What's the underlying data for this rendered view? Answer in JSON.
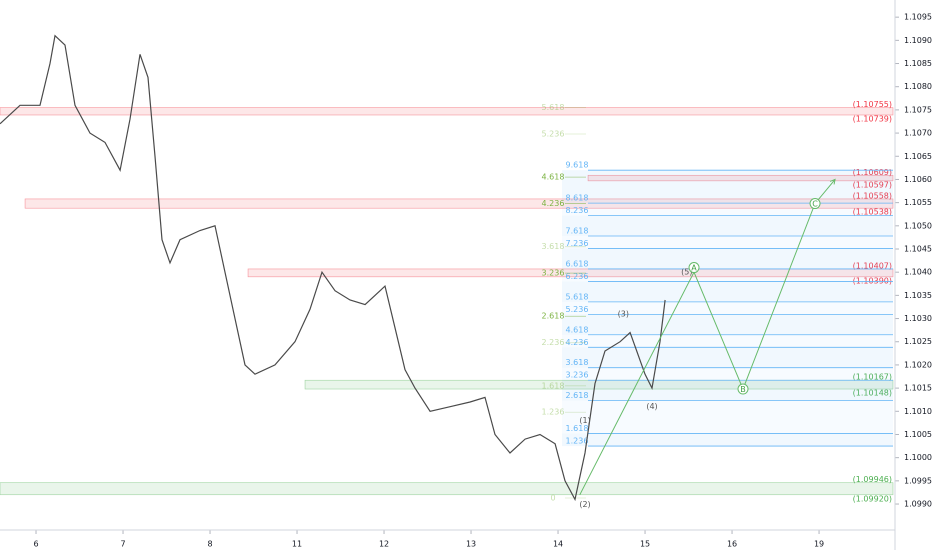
{
  "chart_data": {
    "type": "line",
    "xlim": [
      5.86,
      108.5
    ],
    "ylim": [
      1.09844,
      1.10987
    ],
    "xticks": [
      {
        "value": 10,
        "label": "6"
      },
      {
        "value": 20,
        "label": "7"
      },
      {
        "value": 30,
        "label": "8"
      },
      {
        "value": 40,
        "label": "11"
      },
      {
        "value": 50,
        "label": "12"
      },
      {
        "value": 60,
        "label": "13"
      },
      {
        "value": 70,
        "label": "14"
      },
      {
        "value": 80,
        "label": "15"
      },
      {
        "value": 90,
        "label": "16"
      },
      {
        "value": 100,
        "label": "19"
      }
    ],
    "yticks": [
      {
        "value": 1.1095,
        "label": "1.10950"
      },
      {
        "value": 1.109,
        "label": "1.10900"
      },
      {
        "value": 1.1085,
        "label": "1.10850"
      },
      {
        "value": 1.108,
        "label": "1.10800"
      },
      {
        "value": 1.1075,
        "label": "1.10750"
      },
      {
        "value": 1.107,
        "label": "1.10700"
      },
      {
        "value": 1.1065,
        "label": "1.10650"
      },
      {
        "value": 1.106,
        "label": "1.10600"
      },
      {
        "value": 1.1055,
        "label": "1.10550"
      },
      {
        "value": 1.105,
        "label": "1.10500"
      },
      {
        "value": 1.1045,
        "label": "1.10450"
      },
      {
        "value": 1.104,
        "label": "1.10400"
      },
      {
        "value": 1.1035,
        "label": "1.10350"
      },
      {
        "value": 1.103,
        "label": "1.10300"
      },
      {
        "value": 1.1025,
        "label": "1.10250"
      },
      {
        "value": 1.102,
        "label": "1.10200"
      },
      {
        "value": 1.1015,
        "label": "1.10150"
      },
      {
        "value": 1.101,
        "label": "1.10100"
      },
      {
        "value": 1.1005,
        "label": "1.10050"
      },
      {
        "value": 1.1,
        "label": "1.10000"
      },
      {
        "value": 1.0995,
        "label": "1.09950"
      },
      {
        "value": 1.099,
        "label": "1.09900"
      }
    ],
    "series": [
      {
        "color": "#4a4a4a",
        "x": [
          5.86,
          8.16,
          10.46,
          11.61,
          12.18,
          13.33,
          14.48,
          16.21,
          17.93,
          19.66,
          20.8,
          21.95,
          22.87,
          23.68,
          24.48,
          25.4,
          26.55,
          28.85,
          30.57,
          31.72,
          32.87,
          34.02,
          35.17,
          37.47,
          39.77,
          41.49,
          42.87,
          44.37,
          46.09,
          47.82,
          50.11,
          51.26,
          52.41,
          53.56,
          55.29,
          57.59,
          59.89,
          61.61,
          62.76,
          64.48,
          66.21,
          67.93,
          69.66,
          70.8,
          71.95,
          73.1,
          74.25,
          75.4,
          77.13,
          78.28,
          80.0,
          80.8,
          81.72,
          82.3
        ],
        "values": [
          1.1072,
          1.1076,
          1.1076,
          1.1085,
          1.1091,
          1.1089,
          1.1076,
          1.107,
          1.1068,
          1.1062,
          1.1073,
          1.1087,
          1.1082,
          1.1065,
          1.1047,
          1.1042,
          1.1047,
          1.1049,
          1.105,
          1.104,
          1.103,
          1.102,
          1.1018,
          1.102,
          1.1025,
          1.1032,
          1.104,
          1.1036,
          1.1034,
          1.1033,
          1.1037,
          1.1028,
          1.1019,
          1.1015,
          1.101,
          1.1011,
          1.1012,
          1.1013,
          1.1005,
          1.1001,
          1.1004,
          1.1005,
          1.1003,
          1.0995,
          1.0991,
          1.1001,
          1.1016,
          1.1023,
          1.1025,
          1.1027,
          1.1018,
          1.1015,
          1.1025,
          1.1034
        ]
      }
    ],
    "zones": [
      {
        "from": 5.86,
        "top": 1.10755,
        "bottom": 1.10739,
        "color": "#f23645",
        "top_label": "(1.10755)",
        "bottom_label": "(1.10739)"
      },
      {
        "from": 73.45,
        "top": 1.10609,
        "bottom": 1.10597,
        "color": "#f23645",
        "top_label": "(1.10609)",
        "bottom_label": "(1.10597)"
      },
      {
        "from": 8.74,
        "top": 1.10558,
        "bottom": 1.10538,
        "color": "#f23645",
        "top_label": "(1.10558)",
        "bottom_label": "(1.10538)"
      },
      {
        "from": 34.37,
        "top": 1.10407,
        "bottom": 1.1039,
        "color": "#f23645",
        "top_label": "(1.10407)",
        "bottom_label": "(1.10390)"
      },
      {
        "from": 40.92,
        "top": 1.10167,
        "bottom": 1.10148,
        "color": "#4caf50",
        "top_label": "(1.10167)",
        "bottom_label": "(1.10148)"
      },
      {
        "from": 5.86,
        "top": 1.09946,
        "bottom": 1.0992,
        "color": "#4caf50",
        "top_label": "(1.09946)",
        "bottom_label": "(1.09920)"
      }
    ],
    "fib_left": {
      "color": "#7cb342",
      "levels": [
        {
          "ratio": 5.618,
          "price": 1.10755
        },
        {
          "ratio": 5.236,
          "price": 1.10698
        },
        {
          "ratio": 4.618,
          "price": 1.10605
        },
        {
          "ratio": 4.236,
          "price": 1.10548
        },
        {
          "ratio": 3.618,
          "price": 1.10455
        },
        {
          "ratio": 3.236,
          "price": 1.10398
        },
        {
          "ratio": 2.618,
          "price": 1.10305
        },
        {
          "ratio": 2.236,
          "price": 1.10248
        },
        {
          "ratio": 1.618,
          "price": 1.10155
        },
        {
          "ratio": 1.236,
          "price": 1.10098
        },
        {
          "ratio": 0,
          "price": 1.09913
        }
      ]
    },
    "fib_right": {
      "color": "#64b5f6",
      "levels": [
        {
          "ratio": 9.618,
          "price": 1.1062
        },
        {
          "ratio": 8.618,
          "price": 1.10549
        },
        {
          "ratio": 8.236,
          "price": 1.10522
        },
        {
          "ratio": 7.618,
          "price": 1.10478
        },
        {
          "ratio": 7.236,
          "price": 1.10451
        },
        {
          "ratio": 6.618,
          "price": 1.10407
        },
        {
          "ratio": 6.236,
          "price": 1.1038
        },
        {
          "ratio": 5.618,
          "price": 1.10336
        },
        {
          "ratio": 5.236,
          "price": 1.10309
        },
        {
          "ratio": 4.618,
          "price": 1.10265
        },
        {
          "ratio": 4.236,
          "price": 1.10238
        },
        {
          "ratio": 3.618,
          "price": 1.10194
        },
        {
          "ratio": 3.236,
          "price": 1.10167
        },
        {
          "ratio": 2.618,
          "price": 1.10123
        },
        {
          "ratio": 1.618,
          "price": 1.10052
        },
        {
          "ratio": 1.236,
          "price": 1.10025
        }
      ]
    },
    "projection": {
      "color": "#66bb6a",
      "x": [
        72.5,
        85.63,
        91.26,
        99.54,
        101.84
      ],
      "values": [
        1.0992,
        1.104,
        1.10148,
        1.10548,
        1.106
      ]
    },
    "annotations": [
      {
        "text": "(1)",
        "x": 73.1,
        "price": 1.1008
      },
      {
        "text": "(2)",
        "x": 73.1,
        "price": 1.09899
      },
      {
        "text": "(3)",
        "x": 77.5,
        "price": 1.1031
      },
      {
        "text": "(4)",
        "x": 80.8,
        "price": 1.1011
      },
      {
        "text": "(5)",
        "x": 84.8,
        "price": 1.104
      },
      {
        "text": "A",
        "x": 85.63,
        "price": 1.1041,
        "circled": true
      },
      {
        "text": "B",
        "x": 91.26,
        "price": 1.10148,
        "circled": true
      },
      {
        "text": "C",
        "x": 99.54,
        "price": 1.10548,
        "circled": true
      }
    ]
  }
}
